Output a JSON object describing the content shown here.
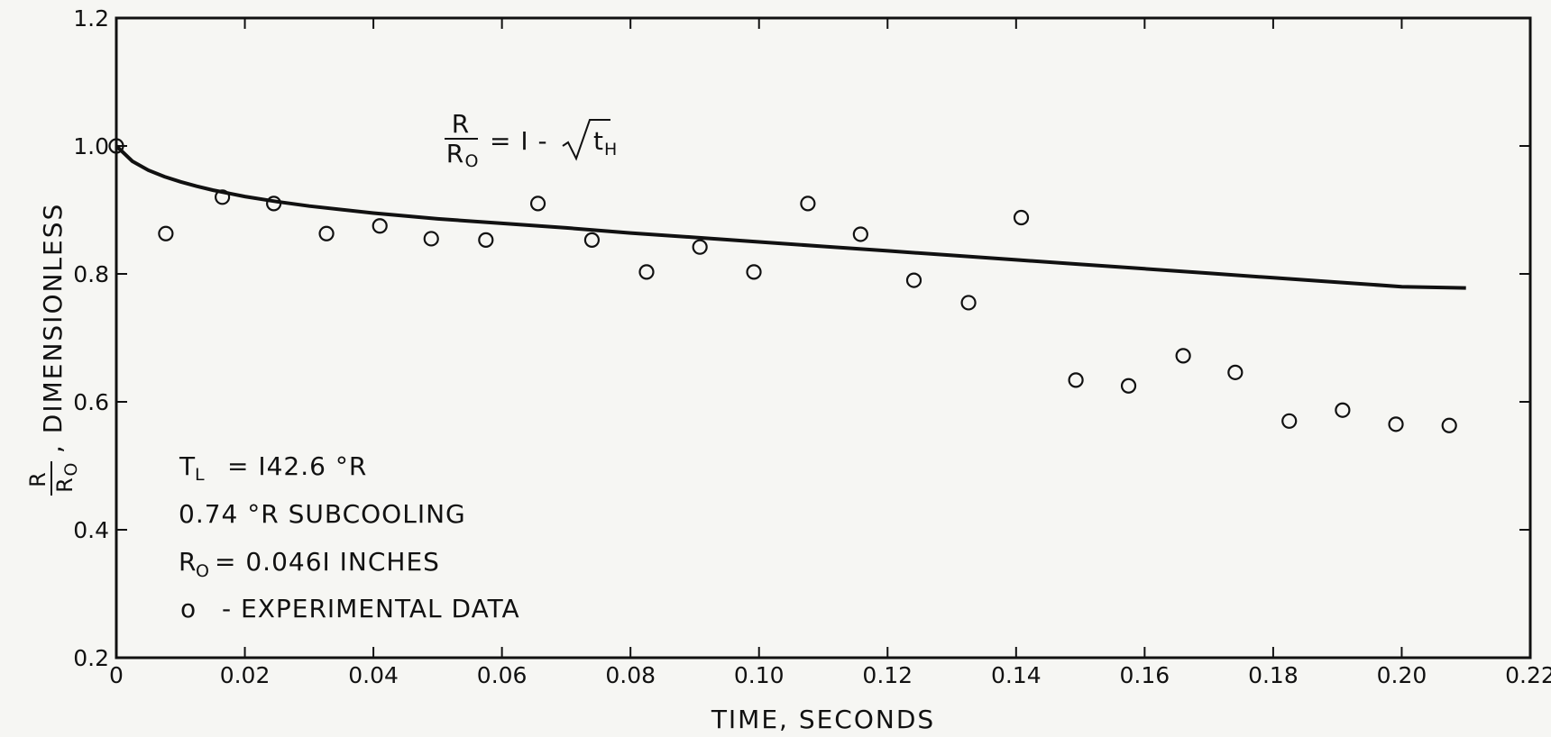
{
  "chart_data": {
    "type": "scatter",
    "xlabel": "TIME, SECONDS",
    "ylabel": {
      "fraction_num": "R",
      "fraction_den_main": "R",
      "fraction_den_sub": "O",
      "suffix": ", DIMENSIONLESS"
    },
    "xlim": [
      0,
      0.22
    ],
    "ylim": [
      0.2,
      1.2
    ],
    "x_ticks": [
      {
        "value": 0,
        "label": "0"
      },
      {
        "value": 0.02,
        "label": "0.02"
      },
      {
        "value": 0.04,
        "label": "0.04"
      },
      {
        "value": 0.06,
        "label": "0.06"
      },
      {
        "value": 0.08,
        "label": "0.08"
      },
      {
        "value": 0.1,
        "label": "0.10"
      },
      {
        "value": 0.12,
        "label": "0.12"
      },
      {
        "value": 0.14,
        "label": "0.14"
      },
      {
        "value": 0.16,
        "label": "0.16"
      },
      {
        "value": 0.18,
        "label": "0.18"
      },
      {
        "value": 0.2,
        "label": "0.20"
      },
      {
        "value": 0.22,
        "label": "0.22"
      }
    ],
    "y_ticks": [
      {
        "value": 0.2,
        "label": "0.2"
      },
      {
        "value": 0.4,
        "label": "0.4"
      },
      {
        "value": 0.6,
        "label": "0.6"
      },
      {
        "value": 0.8,
        "label": "0.8"
      },
      {
        "value": 1.0,
        "label": "1.0"
      },
      {
        "value": 1.2,
        "label": "1.2"
      }
    ],
    "grid": false,
    "series": [
      {
        "kind": "points",
        "marker": "open-circle",
        "x": [
          0,
          0.0077,
          0.0165,
          0.0245,
          0.0327,
          0.041,
          0.049,
          0.0575,
          0.0656,
          0.074,
          0.0825,
          0.0908,
          0.0992,
          0.1076,
          0.1158,
          0.1241,
          0.1326,
          0.1408,
          0.1493,
          0.1575,
          0.166,
          0.1741,
          0.1825,
          0.1908,
          0.1991,
          0.2074
        ],
        "y": [
          1.0,
          0.863,
          0.92,
          0.91,
          0.863,
          0.875,
          0.855,
          0.853,
          0.91,
          0.853,
          0.803,
          0.842,
          0.803,
          0.91,
          0.862,
          0.79,
          0.755,
          0.888,
          0.634,
          0.625,
          0.672,
          0.646,
          0.57,
          0.587,
          0.565,
          0.563
        ]
      },
      {
        "kind": "line",
        "x": [
          0,
          0.0025,
          0.005,
          0.0075,
          0.01,
          0.0125,
          0.015,
          0.02,
          0.025,
          0.03,
          0.04,
          0.05,
          0.06,
          0.07,
          0.08,
          0.09,
          0.1,
          0.11,
          0.12,
          0.13,
          0.14,
          0.15,
          0.16,
          0.17,
          0.18,
          0.19,
          0.2,
          0.21
        ],
        "y": [
          1.0,
          0.976,
          0.962,
          0.952,
          0.944,
          0.937,
          0.931,
          0.921,
          0.913,
          0.906,
          0.895,
          0.886,
          0.879,
          0.872,
          0.864,
          0.857,
          0.85,
          0.843,
          0.836,
          0.829,
          0.822,
          0.815,
          0.808,
          0.801,
          0.794,
          0.787,
          0.78,
          0.778
        ]
      }
    ],
    "annotations": {
      "equation": {
        "num": "R",
        "den_main": "R",
        "den_sub": "O",
        "rhs": "= I -",
        "rad_main": "t",
        "rad_sub": "H"
      },
      "tl": {
        "main": "T",
        "sub": "L",
        "rest": "= I42.6 °R"
      },
      "subcooling": "0.74 °R SUBCOOLING",
      "r0": {
        "main": "R",
        "sub": "O",
        "rest": "= 0.046I INCHES"
      },
      "legend": {
        "marker": "o",
        "text": "- EXPERIMENTAL  DATA"
      }
    }
  }
}
